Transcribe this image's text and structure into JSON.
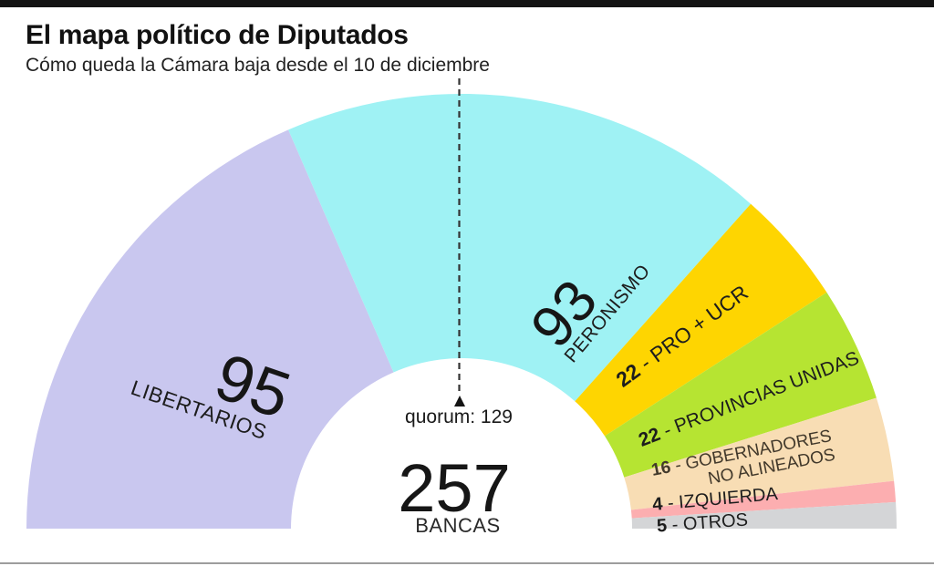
{
  "header": {
    "title": "El mapa político de Diputados",
    "subtitle": "Cómo queda la Cámara baja desde el 10 de diciembre"
  },
  "chart_data": {
    "type": "pie",
    "variant": "half_donut_hemicycle",
    "title": "El mapa político de Diputados",
    "subtitle": "Cómo queda la Cámara baja desde el 10 de diciembre",
    "total_seats": 257,
    "angle_span_deg": 180,
    "series": [
      {
        "name": "LIBERTARIOS",
        "value": 95,
        "color": "#c9c7ef",
        "number": "95",
        "text": "LIBERTARIOS"
      },
      {
        "name": "PERONISMO",
        "value": 93,
        "color": "#9ff2f4",
        "number": "93",
        "text": "PERONISMO"
      },
      {
        "name": "PRO + UCR",
        "value": 22,
        "color": "#fed501",
        "number": "22",
        "text": " - PRO + UCR"
      },
      {
        "name": "PROVINCIAS UNIDAS",
        "value": 22,
        "color": "#b6e432",
        "number": "22",
        "text": " - PROVINCIAS UNIDAS"
      },
      {
        "name": "GOBERNADORES NO ALINEADOS",
        "value": 16,
        "color": "#f8ddb4",
        "number": "16",
        "text": " - GOBERNADORES",
        "text2": "NO ALINEADOS"
      },
      {
        "name": "IZQUIERDA",
        "value": 4,
        "color": "#fcaeb0",
        "number": "4",
        "text": " - IZQUIERDA"
      },
      {
        "name": "OTROS",
        "value": 5,
        "color": "#d4d5d7",
        "number": "5",
        "text": " - OTROS"
      }
    ],
    "center": {
      "quorum_label": "quorum: 129",
      "quorum_value": 129,
      "total_value": "257",
      "total_unit": "BANCAS"
    }
  }
}
